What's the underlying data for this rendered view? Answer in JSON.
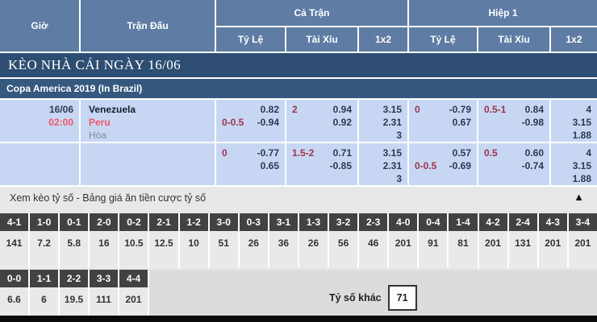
{
  "table_header": {
    "time": "Giờ",
    "match": "Trận Đấu",
    "full_time": "Cả Trận",
    "first_half": "Hiệp 1",
    "sub": {
      "handicap": "Tỷ Lệ",
      "over_under": "Tài Xỉu",
      "one_x_two": "1x2"
    }
  },
  "section_title": "KÈO NHÀ CÁI NGÀY 16/06",
  "league_title": "Copa America 2019 (In Brazil)",
  "match": {
    "date": "16/06",
    "time": "02:00",
    "home": "Venezuela",
    "away": "Peru",
    "draw": "Hòa"
  },
  "odds_rows": [
    {
      "ft": {
        "hdp": [
          {
            "l": "",
            "r": "0.82"
          },
          {
            "l": "0-0.5",
            "r": "-0.94"
          }
        ],
        "ou": [
          {
            "l": "2",
            "r": "0.94"
          },
          {
            "l": "",
            "r": "0.92"
          }
        ],
        "x12": [
          "3.15",
          "2.31",
          "3"
        ]
      },
      "h1": {
        "hdp": [
          {
            "l": "0",
            "r": "-0.79"
          },
          {
            "l": "",
            "r": "0.67"
          }
        ],
        "ou": [
          {
            "l": "0.5-1",
            "r": "0.84"
          },
          {
            "l": "",
            "r": "-0.98"
          }
        ],
        "x12": [
          "4",
          "3.15",
          "1.88"
        ]
      }
    },
    {
      "ft": {
        "hdp": [
          {
            "l": "0",
            "r": "-0.77"
          },
          {
            "l": "",
            "r": "0.65"
          }
        ],
        "ou": [
          {
            "l": "1.5-2",
            "r": "0.71"
          },
          {
            "l": "",
            "r": "-0.85"
          }
        ],
        "x12": [
          "3.15",
          "2.31",
          "3"
        ]
      },
      "h1": {
        "hdp": [
          {
            "l": "",
            "r": "0.57"
          },
          {
            "l": "0-0.5",
            "r": "-0.69"
          }
        ],
        "ou": [
          {
            "l": "0.5",
            "r": "0.60"
          },
          {
            "l": "",
            "r": "-0.74"
          }
        ],
        "x12": [
          "4",
          "3.15",
          "1.88"
        ]
      }
    }
  ],
  "score_panel": {
    "toggle_label": "Xem kèo tỷ số - Bảng giá ăn tiền cược tỷ số",
    "collapse_icon": "▲",
    "row1": [
      {
        "score": "4-1",
        "odds": "141"
      },
      {
        "score": "1-0",
        "odds": "7.2"
      },
      {
        "score": "0-1",
        "odds": "5.8"
      },
      {
        "score": "2-0",
        "odds": "16"
      },
      {
        "score": "0-2",
        "odds": "10.5"
      },
      {
        "score": "2-1",
        "odds": "12.5"
      },
      {
        "score": "1-2",
        "odds": "10"
      },
      {
        "score": "3-0",
        "odds": "51"
      },
      {
        "score": "0-3",
        "odds": "26"
      },
      {
        "score": "3-1",
        "odds": "36"
      },
      {
        "score": "1-3",
        "odds": "26"
      },
      {
        "score": "3-2",
        "odds": "56"
      },
      {
        "score": "2-3",
        "odds": "46"
      },
      {
        "score": "4-0",
        "odds": "201"
      },
      {
        "score": "0-4",
        "odds": "91"
      },
      {
        "score": "1-4",
        "odds": "81"
      },
      {
        "score": "4-2",
        "odds": "201"
      },
      {
        "score": "2-4",
        "odds": "131"
      },
      {
        "score": "4-3",
        "odds": "201"
      },
      {
        "score": "3-4",
        "odds": "201"
      }
    ],
    "row2": [
      {
        "score": "0-0",
        "odds": "6.6"
      },
      {
        "score": "1-1",
        "odds": "6"
      },
      {
        "score": "2-2",
        "odds": "19.5"
      },
      {
        "score": "3-3",
        "odds": "111"
      },
      {
        "score": "4-4",
        "odds": "201"
      }
    ],
    "other_label": "Tỷ số khác",
    "other_value": "71"
  },
  "colors": {
    "header_blue": "#5e7ca4",
    "title_navy": "#2d4e72",
    "league_navy": "#35587e",
    "row_light_blue": "#c7d7f3",
    "accent_red": "#f4566a",
    "handicap_maroon": "#9e3448",
    "score_header_dark": "#424242",
    "score_cell_gray": "#e9e9e9"
  }
}
